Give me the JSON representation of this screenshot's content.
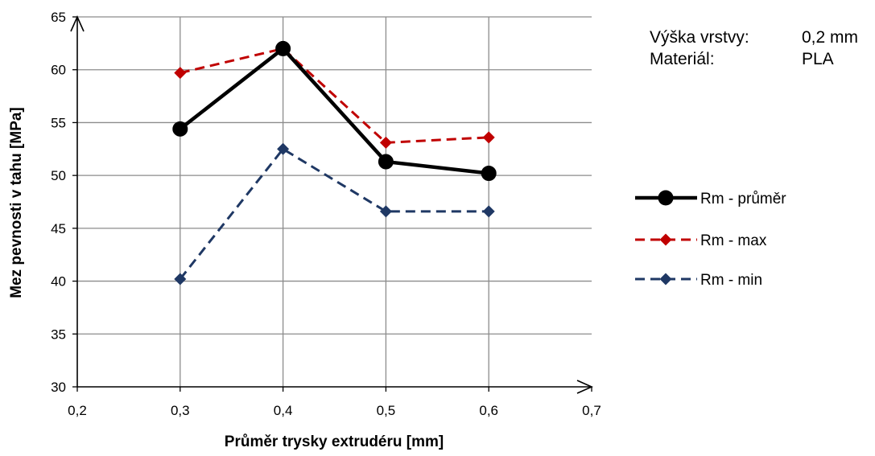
{
  "chart_data": {
    "type": "line",
    "title": "",
    "xlabel": "Průměr trysky extrudéru [mm]",
    "ylabel": "Mez pevnosti v tahu [MPa]",
    "xlim": [
      0.2,
      0.7
    ],
    "ylim": [
      30,
      65
    ],
    "x_ticks": [
      "0,2",
      "0,3",
      "0,4",
      "0,5",
      "0,6",
      "0,7"
    ],
    "y_ticks": [
      "30",
      "35",
      "40",
      "45",
      "50",
      "55",
      "60",
      "65"
    ],
    "grid": true,
    "legend_position": "right",
    "x": [
      0.3,
      0.4,
      0.5,
      0.6
    ],
    "series": [
      {
        "name": "Rm - průměr",
        "values": [
          54.4,
          62.0,
          51.3,
          50.2
        ],
        "color": "#000000",
        "style": "solid",
        "marker": "circle"
      },
      {
        "name": "Rm - max",
        "values": [
          59.7,
          62.0,
          53.1,
          53.6
        ],
        "color": "#C00000",
        "style": "dashed",
        "marker": "diamond"
      },
      {
        "name": "Rm - min",
        "values": [
          40.2,
          52.5,
          46.6,
          46.6
        ],
        "color": "#1F3864",
        "style": "dashed",
        "marker": "diamond"
      }
    ],
    "annotations": [
      {
        "label": "Výška vrstvy:",
        "value": "0,2 mm"
      },
      {
        "label": "Materiál:",
        "value": "PLA"
      }
    ]
  }
}
